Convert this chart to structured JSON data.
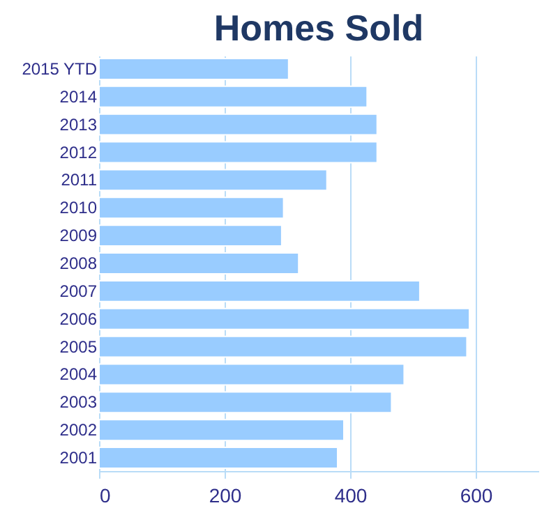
{
  "chart_data": {
    "type": "bar",
    "orientation": "horizontal",
    "title": "Homes Sold",
    "categories": [
      "2015 YTD",
      "2014",
      "2013",
      "2012",
      "2011",
      "2010",
      "2009",
      "2008",
      "2007",
      "2006",
      "2005",
      "2004",
      "2003",
      "2002",
      "2001"
    ],
    "values": [
      302,
      427,
      443,
      443,
      363,
      294,
      291,
      318,
      511,
      590,
      586,
      486,
      466,
      390,
      380
    ],
    "color": "#99ccff",
    "xlim": [
      0,
      700
    ],
    "xticks": [
      0,
      200,
      400,
      600
    ],
    "grid": "x"
  }
}
